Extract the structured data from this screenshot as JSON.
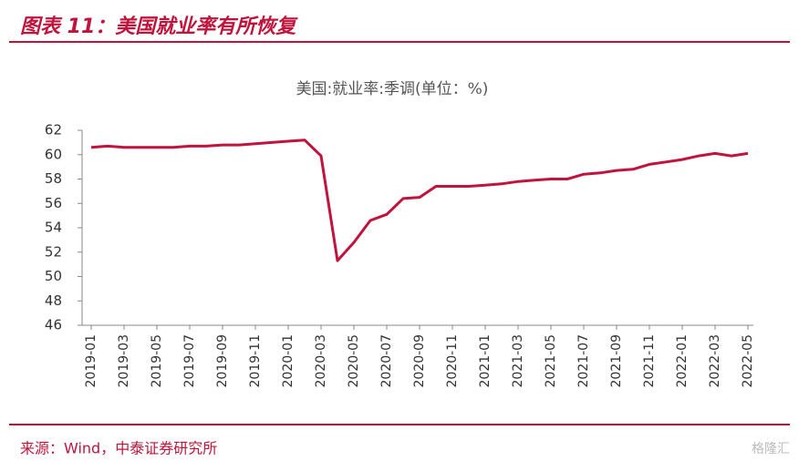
{
  "header": {
    "title": "图表 11：美国就业率有所恢复"
  },
  "footer": {
    "source": "来源：Wind，中泰证券研究所",
    "watermark": "格隆汇"
  },
  "chart_data": {
    "type": "line",
    "title": "美国:就业率:季调(单位：%)",
    "categories": [
      "2019-01",
      null,
      "2019-03",
      null,
      "2019-05",
      null,
      "2019-07",
      null,
      "2019-09",
      null,
      "2019-11",
      null,
      "2020-01",
      null,
      "2020-03",
      null,
      "2020-05",
      null,
      "2020-07",
      null,
      "2020-09",
      null,
      "2020-11",
      null,
      "2021-01",
      null,
      "2021-03",
      null,
      "2021-05",
      null,
      "2021-07",
      null,
      "2021-09",
      null,
      "2021-11",
      null,
      "2022-01",
      null,
      "2022-03",
      null,
      "2022-05"
    ],
    "series": [
      {
        "name": "美国:就业率:季调",
        "color": "#c0143c",
        "values": [
          60.6,
          60.7,
          60.6,
          60.6,
          60.6,
          60.6,
          60.7,
          60.7,
          60.8,
          60.8,
          60.9,
          61.0,
          61.1,
          61.2,
          59.9,
          51.3,
          52.8,
          54.6,
          55.1,
          56.4,
          56.5,
          57.4,
          57.4,
          57.4,
          57.5,
          57.6,
          57.8,
          57.9,
          58.0,
          58.0,
          58.4,
          58.5,
          58.7,
          58.8,
          59.2,
          59.4,
          59.6,
          59.9,
          60.1,
          59.9,
          60.1
        ]
      }
    ],
    "ylim": [
      46,
      62
    ],
    "yticks": [
      46,
      48,
      50,
      52,
      54,
      56,
      58,
      60,
      62
    ],
    "grid": false
  }
}
